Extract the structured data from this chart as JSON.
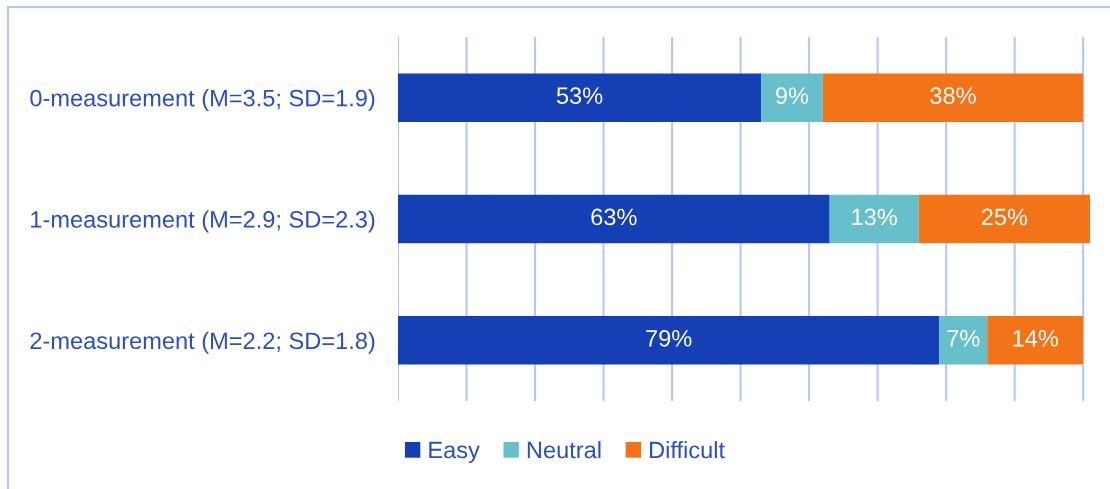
{
  "chart_data": {
    "type": "bar",
    "orientation": "horizontal",
    "stacked": true,
    "categories": [
      "0-measurement (M=3.5; SD=1.9)",
      "1-measurement (M=2.9; SD=2.3)",
      "2-measurement (M=2.2; SD=1.8)"
    ],
    "series": [
      {
        "name": "Easy",
        "color": "#143fb5",
        "values": [
          53,
          63,
          79
        ],
        "value_labels": [
          "53%",
          "63%",
          "79%"
        ]
      },
      {
        "name": "Neutral",
        "color": "#67bfcc",
        "values": [
          9,
          13,
          7
        ],
        "value_labels": [
          "9%",
          "13%",
          "7%"
        ]
      },
      {
        "name": "Difficult",
        "color": "#f27318",
        "values": [
          38,
          25,
          14
        ],
        "value_labels": [
          "38%",
          "25%",
          "14%"
        ]
      }
    ],
    "xlim": [
      0,
      101
    ],
    "xticks": [
      {
        "value": 0,
        "label": null
      },
      {
        "value": 10,
        "label": null
      },
      {
        "value": 20,
        "label": null
      },
      {
        "value": 30,
        "label": null
      },
      {
        "value": 40,
        "label": null
      },
      {
        "value": 50,
        "label": null
      },
      {
        "value": 60,
        "label": null
      },
      {
        "value": 70,
        "label": null
      },
      {
        "value": 80,
        "label": null
      },
      {
        "value": 90,
        "label": null
      },
      {
        "value": 100,
        "label": null
      }
    ],
    "tick_labels": "y",
    "grid": "x",
    "legend": "bottom"
  }
}
